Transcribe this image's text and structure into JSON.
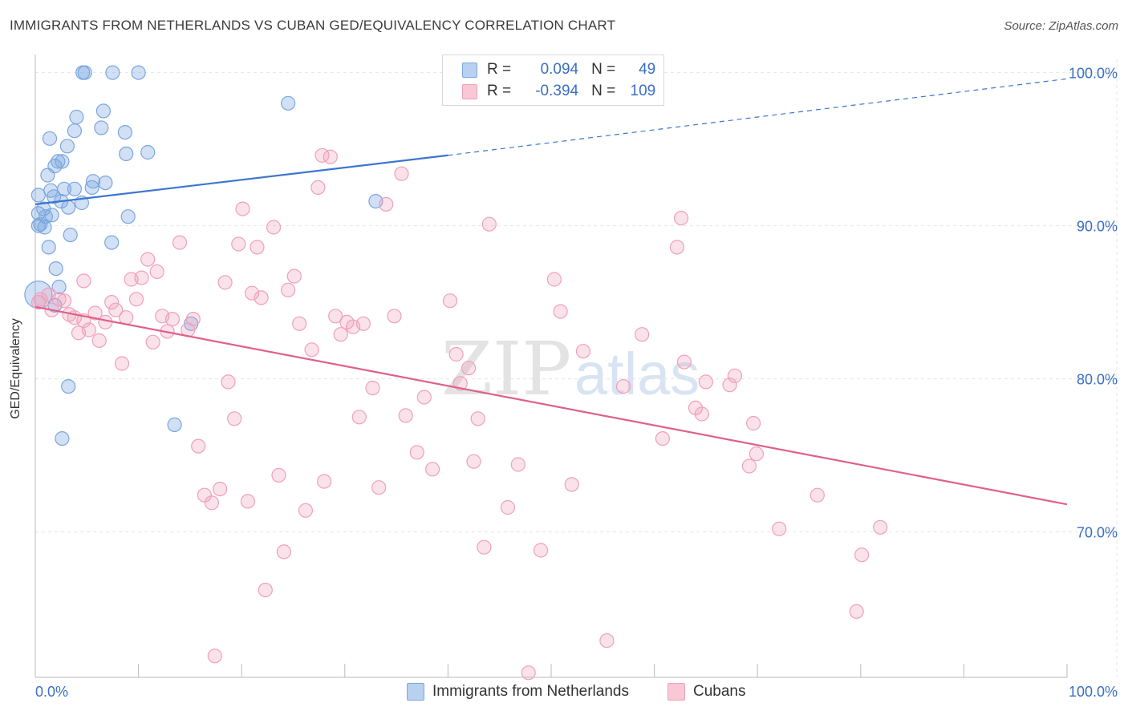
{
  "header": {
    "title": "IMMIGRANTS FROM NETHERLANDS VS CUBAN GED/EQUIVALENCY CORRELATION CHART",
    "source": "Source: ZipAtlas.com"
  },
  "watermark": {
    "zip": "ZIP",
    "atlas": "atlas"
  },
  "legend": {
    "r_label": "R =",
    "n_label": "N =",
    "rows": [
      {
        "r": "0.094",
        "n": "49"
      },
      {
        "r": "-0.394",
        "n": "109"
      }
    ]
  },
  "chart_data": {
    "type": "scatter",
    "title": "IMMIGRANTS FROM NETHERLANDS VS CUBAN GED/EQUIVALENCY CORRELATION CHART",
    "xlabel": "",
    "ylabel": "GED/Equivalency",
    "xlim": [
      0,
      100
    ],
    "ylim": [
      60.5,
      101.5
    ],
    "x_tick_labels": [
      "0.0%",
      "100.0%"
    ],
    "y_ticks": [
      70,
      80,
      90,
      100
    ],
    "y_tick_labels": [
      "70.0%",
      "80.0%",
      "90.0%",
      "100.0%"
    ],
    "grid": true,
    "legend_position": "top-center",
    "series": [
      {
        "name": "Immigrants from Netherlands",
        "color": "#7aa6e0",
        "line_color": "#3b76cf",
        "trend": {
          "x0": 0,
          "y0": 91.4,
          "x1": 40,
          "y1": 94.6,
          "x_dash_end": 100,
          "y_dash_end": 99.6
        },
        "points": [
          [
            0.3,
            85.5
          ],
          [
            4.6,
            100
          ],
          [
            4.8,
            100
          ],
          [
            7.5,
            100
          ],
          [
            10,
            100
          ],
          [
            24.5,
            98
          ],
          [
            6.6,
            97.5
          ],
          [
            4,
            97.1
          ],
          [
            6.4,
            96.4
          ],
          [
            3.8,
            96.2
          ],
          [
            8.7,
            96.1
          ],
          [
            1.4,
            95.7
          ],
          [
            3.1,
            95.2
          ],
          [
            8.8,
            94.7
          ],
          [
            10.9,
            94.8
          ],
          [
            2.2,
            94.2
          ],
          [
            2.6,
            94.2
          ],
          [
            1.9,
            93.9
          ],
          [
            1.2,
            93.3
          ],
          [
            6.8,
            92.8
          ],
          [
            5.6,
            92.9
          ],
          [
            5.5,
            92.5
          ],
          [
            1.5,
            92.3
          ],
          [
            2.8,
            92.4
          ],
          [
            3.8,
            92.4
          ],
          [
            0.3,
            92
          ],
          [
            1.8,
            91.9
          ],
          [
            2.5,
            91.6
          ],
          [
            4.5,
            91.5
          ],
          [
            3.2,
            91.2
          ],
          [
            0.8,
            91.1
          ],
          [
            0.3,
            90.8
          ],
          [
            1,
            90.6
          ],
          [
            1.6,
            90.7
          ],
          [
            9,
            90.6
          ],
          [
            0.3,
            90
          ],
          [
            0.9,
            89.9
          ],
          [
            3.4,
            89.4
          ],
          [
            7.4,
            88.9
          ],
          [
            1.3,
            88.6
          ],
          [
            2,
            87.2
          ],
          [
            33,
            91.6
          ],
          [
            2.3,
            86
          ],
          [
            1.9,
            84.8
          ],
          [
            15.1,
            83.6
          ],
          [
            3.2,
            79.5
          ],
          [
            13.5,
            77
          ],
          [
            2.6,
            76.1
          ],
          [
            0.5,
            90.1
          ]
        ]
      },
      {
        "name": "Cubans",
        "color": "#f0a0b8",
        "line_color": "#e0608a",
        "trend": {
          "x0": 0,
          "y0": 84.7,
          "x1": 100,
          "y1": 71.8
        },
        "points": [
          [
            0.3,
            85
          ],
          [
            0.5,
            85.2
          ],
          [
            1.3,
            85.5
          ],
          [
            1.6,
            84.5
          ],
          [
            2.3,
            85.2
          ],
          [
            2.8,
            85.1
          ],
          [
            3.3,
            84.2
          ],
          [
            3.8,
            84
          ],
          [
            4.2,
            83
          ],
          [
            4.7,
            83.8
          ],
          [
            5.2,
            83.2
          ],
          [
            5.8,
            84.3
          ],
          [
            6.2,
            82.5
          ],
          [
            6.8,
            83.7
          ],
          [
            7.4,
            85
          ],
          [
            7.8,
            84.5
          ],
          [
            8.4,
            81
          ],
          [
            8.8,
            84
          ],
          [
            9.3,
            86.5
          ],
          [
            9.8,
            85.2
          ],
          [
            10.3,
            86.6
          ],
          [
            10.9,
            87.8
          ],
          [
            11.4,
            82.4
          ],
          [
            11.8,
            87
          ],
          [
            12.3,
            84.1
          ],
          [
            12.8,
            83.1
          ],
          [
            13.3,
            83.9
          ],
          [
            14,
            88.9
          ],
          [
            14.8,
            83.2
          ],
          [
            15.3,
            83.9
          ],
          [
            15.8,
            75.6
          ],
          [
            16.4,
            72.4
          ],
          [
            17.1,
            71.9
          ],
          [
            17.4,
            61.9
          ],
          [
            17.9,
            72.8
          ],
          [
            18.4,
            86.3
          ],
          [
            18.7,
            79.8
          ],
          [
            19.3,
            77.4
          ],
          [
            19.7,
            88.8
          ],
          [
            20.1,
            91.1
          ],
          [
            20.6,
            72
          ],
          [
            21,
            85.6
          ],
          [
            21.5,
            88.6
          ],
          [
            21.9,
            85.3
          ],
          [
            22.3,
            66.2
          ],
          [
            23.1,
            89.9
          ],
          [
            23.6,
            73.7
          ],
          [
            24.1,
            68.7
          ],
          [
            24.5,
            85.8
          ],
          [
            25.1,
            86.7
          ],
          [
            25.6,
            83.6
          ],
          [
            26.2,
            71.4
          ],
          [
            26.8,
            81.9
          ],
          [
            27.4,
            92.5
          ],
          [
            28,
            73.3
          ],
          [
            27.8,
            94.6
          ],
          [
            28.6,
            94.5
          ],
          [
            29.1,
            84.1
          ],
          [
            29.6,
            82.9
          ],
          [
            30.2,
            83.7
          ],
          [
            30.8,
            83.4
          ],
          [
            31.4,
            77.5
          ],
          [
            31.8,
            83.6
          ],
          [
            32.7,
            79.4
          ],
          [
            33.3,
            72.9
          ],
          [
            34,
            91.4
          ],
          [
            34.8,
            84.1
          ],
          [
            35.5,
            93.4
          ],
          [
            35.9,
            77.6
          ],
          [
            37,
            75.2
          ],
          [
            37.7,
            78.8
          ],
          [
            38.5,
            74.1
          ],
          [
            40.2,
            85.1
          ],
          [
            40.8,
            81.6
          ],
          [
            41.2,
            79.7
          ],
          [
            42,
            80.7
          ],
          [
            42.5,
            74.6
          ],
          [
            42.9,
            77.4
          ],
          [
            43.5,
            69
          ],
          [
            44,
            90.1
          ],
          [
            45.8,
            71.6
          ],
          [
            46.8,
            74.4
          ],
          [
            47.8,
            60.8
          ],
          [
            49,
            68.8
          ],
          [
            50.3,
            86.5
          ],
          [
            50.9,
            84.4
          ],
          [
            52,
            73.1
          ],
          [
            53.1,
            81.8
          ],
          [
            55.4,
            62.9
          ],
          [
            57,
            79.5
          ],
          [
            58.8,
            82.9
          ],
          [
            60.8,
            76.1
          ],
          [
            62.2,
            88.6
          ],
          [
            62.6,
            90.5
          ],
          [
            62.9,
            81.1
          ],
          [
            64,
            78.1
          ],
          [
            64.6,
            77.7
          ],
          [
            65,
            79.8
          ],
          [
            67.3,
            79.6
          ],
          [
            67.8,
            80.2
          ],
          [
            69.2,
            74.3
          ],
          [
            69.6,
            77.1
          ],
          [
            69.9,
            75.1
          ],
          [
            72.1,
            70.2
          ],
          [
            75.8,
            72.4
          ],
          [
            79.6,
            64.8
          ],
          [
            80.1,
            68.5
          ],
          [
            81.9,
            70.3
          ],
          [
            4.7,
            86.4
          ]
        ]
      }
    ]
  }
}
